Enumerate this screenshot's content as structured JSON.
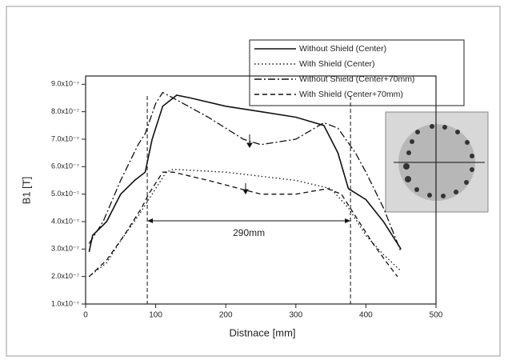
{
  "chart_data": {
    "type": "line",
    "x_label": "Distnace [mm]",
    "y_label": "B1 [T]",
    "xlim": [
      0,
      500
    ],
    "xticks": [
      0,
      100,
      200,
      300,
      400,
      500
    ],
    "ylim": [
      1e-07,
      9.3e-07
    ],
    "yticks": [
      {
        "value": 1e-07,
        "label": "1.0x10⁻⁷"
      },
      {
        "value": 2e-07,
        "label": "2.0x10⁻⁷"
      },
      {
        "value": 3e-07,
        "label": "3.0x10⁻⁷"
      },
      {
        "value": 4e-07,
        "label": "4.0x10⁻⁷"
      },
      {
        "value": 5e-07,
        "label": "5.0x10⁻⁷"
      },
      {
        "value": 6e-07,
        "label": "6.0x10⁻⁷"
      },
      {
        "value": 7e-07,
        "label": "7.0x10⁻⁷"
      },
      {
        "value": 8e-07,
        "label": "8.0x10⁻⁷"
      },
      {
        "value": 9e-07,
        "label": "9.0x10⁻⁷"
      }
    ],
    "series": [
      {
        "name": "Without Shield (Center)",
        "color": "#111",
        "style": "solid",
        "x": [
          5,
          10,
          30,
          50,
          70,
          85,
          95,
          110,
          130,
          150,
          200,
          250,
          300,
          340,
          360,
          375,
          400,
          425,
          450
        ],
        "values": [
          2.9e-07,
          3.5e-07,
          4e-07,
          5e-07,
          5.5e-07,
          5.8e-07,
          7e-07,
          8.2e-07,
          8.6e-07,
          8.5e-07,
          8.2e-07,
          8e-07,
          7.8e-07,
          7.5e-07,
          6.5e-07,
          5.2e-07,
          4.8e-07,
          4e-07,
          3e-07
        ]
      },
      {
        "name": "With Shield (Center)",
        "color": "#111",
        "style": "dotted",
        "x": [
          5,
          30,
          50,
          75,
          95,
          115,
          125,
          200,
          300,
          350,
          375,
          400,
          425,
          450
        ],
        "values": [
          2e-07,
          2.5e-07,
          3.3e-07,
          4.2e-07,
          5e-07,
          5.8e-07,
          5.9e-07,
          5.8e-07,
          5.5e-07,
          5.2e-07,
          4.5e-07,
          3.5e-07,
          2.8e-07,
          2.2e-07
        ]
      },
      {
        "name": "Without Shield (Center+70mm)",
        "color": "#111",
        "style": "dashdot",
        "x": [
          5,
          25,
          50,
          75,
          85,
          100,
          110,
          125,
          175,
          225,
          250,
          300,
          340,
          360,
          385,
          400,
          425,
          450
        ],
        "values": [
          3.2e-07,
          4e-07,
          5.5e-07,
          6.8e-07,
          7.2e-07,
          8.3e-07,
          8.7e-07,
          8.5e-07,
          7.8e-07,
          7e-07,
          6.8e-07,
          7e-07,
          7.6e-07,
          7.4e-07,
          6.5e-07,
          5.8e-07,
          4.5e-07,
          2.9e-07
        ]
      },
      {
        "name": "With Shield (Center+70mm)",
        "color": "#111",
        "style": "dashed",
        "x": [
          5,
          30,
          55,
          80,
          90,
          110,
          125,
          175,
          250,
          300,
          345,
          365,
          385,
          410,
          430,
          445
        ],
        "values": [
          2e-07,
          2.6e-07,
          3.5e-07,
          4.5e-07,
          5e-07,
          5.8e-07,
          5.8e-07,
          5.5e-07,
          5e-07,
          5e-07,
          5.2e-07,
          5e-07,
          4.2e-07,
          3.2e-07,
          2.5e-07,
          2e-07
        ]
      }
    ],
    "vlines": [
      88,
      378
    ],
    "span_label": "290mm"
  }
}
